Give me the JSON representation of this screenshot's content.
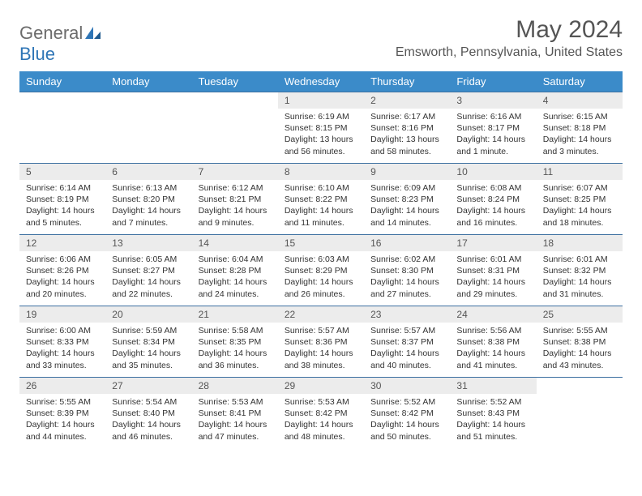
{
  "logo": {
    "text1": "General",
    "text2": "Blue"
  },
  "title": "May 2024",
  "location": "Emsworth, Pennsylvania, United States",
  "colors": {
    "header_bg": "#3b8bc9",
    "row_border": "#3b6fa0",
    "daynum_bg": "#ececec",
    "logo_blue": "#2e75b6"
  },
  "weekdays": [
    "Sunday",
    "Monday",
    "Tuesday",
    "Wednesday",
    "Thursday",
    "Friday",
    "Saturday"
  ],
  "weeks": [
    [
      {
        "n": "",
        "sr": "",
        "ss": "",
        "dl": ""
      },
      {
        "n": "",
        "sr": "",
        "ss": "",
        "dl": ""
      },
      {
        "n": "",
        "sr": "",
        "ss": "",
        "dl": ""
      },
      {
        "n": "1",
        "sr": "Sunrise: 6:19 AM",
        "ss": "Sunset: 8:15 PM",
        "dl": "Daylight: 13 hours and 56 minutes."
      },
      {
        "n": "2",
        "sr": "Sunrise: 6:17 AM",
        "ss": "Sunset: 8:16 PM",
        "dl": "Daylight: 13 hours and 58 minutes."
      },
      {
        "n": "3",
        "sr": "Sunrise: 6:16 AM",
        "ss": "Sunset: 8:17 PM",
        "dl": "Daylight: 14 hours and 1 minute."
      },
      {
        "n": "4",
        "sr": "Sunrise: 6:15 AM",
        "ss": "Sunset: 8:18 PM",
        "dl": "Daylight: 14 hours and 3 minutes."
      }
    ],
    [
      {
        "n": "5",
        "sr": "Sunrise: 6:14 AM",
        "ss": "Sunset: 8:19 PM",
        "dl": "Daylight: 14 hours and 5 minutes."
      },
      {
        "n": "6",
        "sr": "Sunrise: 6:13 AM",
        "ss": "Sunset: 8:20 PM",
        "dl": "Daylight: 14 hours and 7 minutes."
      },
      {
        "n": "7",
        "sr": "Sunrise: 6:12 AM",
        "ss": "Sunset: 8:21 PM",
        "dl": "Daylight: 14 hours and 9 minutes."
      },
      {
        "n": "8",
        "sr": "Sunrise: 6:10 AM",
        "ss": "Sunset: 8:22 PM",
        "dl": "Daylight: 14 hours and 11 minutes."
      },
      {
        "n": "9",
        "sr": "Sunrise: 6:09 AM",
        "ss": "Sunset: 8:23 PM",
        "dl": "Daylight: 14 hours and 14 minutes."
      },
      {
        "n": "10",
        "sr": "Sunrise: 6:08 AM",
        "ss": "Sunset: 8:24 PM",
        "dl": "Daylight: 14 hours and 16 minutes."
      },
      {
        "n": "11",
        "sr": "Sunrise: 6:07 AM",
        "ss": "Sunset: 8:25 PM",
        "dl": "Daylight: 14 hours and 18 minutes."
      }
    ],
    [
      {
        "n": "12",
        "sr": "Sunrise: 6:06 AM",
        "ss": "Sunset: 8:26 PM",
        "dl": "Daylight: 14 hours and 20 minutes."
      },
      {
        "n": "13",
        "sr": "Sunrise: 6:05 AM",
        "ss": "Sunset: 8:27 PM",
        "dl": "Daylight: 14 hours and 22 minutes."
      },
      {
        "n": "14",
        "sr": "Sunrise: 6:04 AM",
        "ss": "Sunset: 8:28 PM",
        "dl": "Daylight: 14 hours and 24 minutes."
      },
      {
        "n": "15",
        "sr": "Sunrise: 6:03 AM",
        "ss": "Sunset: 8:29 PM",
        "dl": "Daylight: 14 hours and 26 minutes."
      },
      {
        "n": "16",
        "sr": "Sunrise: 6:02 AM",
        "ss": "Sunset: 8:30 PM",
        "dl": "Daylight: 14 hours and 27 minutes."
      },
      {
        "n": "17",
        "sr": "Sunrise: 6:01 AM",
        "ss": "Sunset: 8:31 PM",
        "dl": "Daylight: 14 hours and 29 minutes."
      },
      {
        "n": "18",
        "sr": "Sunrise: 6:01 AM",
        "ss": "Sunset: 8:32 PM",
        "dl": "Daylight: 14 hours and 31 minutes."
      }
    ],
    [
      {
        "n": "19",
        "sr": "Sunrise: 6:00 AM",
        "ss": "Sunset: 8:33 PM",
        "dl": "Daylight: 14 hours and 33 minutes."
      },
      {
        "n": "20",
        "sr": "Sunrise: 5:59 AM",
        "ss": "Sunset: 8:34 PM",
        "dl": "Daylight: 14 hours and 35 minutes."
      },
      {
        "n": "21",
        "sr": "Sunrise: 5:58 AM",
        "ss": "Sunset: 8:35 PM",
        "dl": "Daylight: 14 hours and 36 minutes."
      },
      {
        "n": "22",
        "sr": "Sunrise: 5:57 AM",
        "ss": "Sunset: 8:36 PM",
        "dl": "Daylight: 14 hours and 38 minutes."
      },
      {
        "n": "23",
        "sr": "Sunrise: 5:57 AM",
        "ss": "Sunset: 8:37 PM",
        "dl": "Daylight: 14 hours and 40 minutes."
      },
      {
        "n": "24",
        "sr": "Sunrise: 5:56 AM",
        "ss": "Sunset: 8:38 PM",
        "dl": "Daylight: 14 hours and 41 minutes."
      },
      {
        "n": "25",
        "sr": "Sunrise: 5:55 AM",
        "ss": "Sunset: 8:38 PM",
        "dl": "Daylight: 14 hours and 43 minutes."
      }
    ],
    [
      {
        "n": "26",
        "sr": "Sunrise: 5:55 AM",
        "ss": "Sunset: 8:39 PM",
        "dl": "Daylight: 14 hours and 44 minutes."
      },
      {
        "n": "27",
        "sr": "Sunrise: 5:54 AM",
        "ss": "Sunset: 8:40 PM",
        "dl": "Daylight: 14 hours and 46 minutes."
      },
      {
        "n": "28",
        "sr": "Sunrise: 5:53 AM",
        "ss": "Sunset: 8:41 PM",
        "dl": "Daylight: 14 hours and 47 minutes."
      },
      {
        "n": "29",
        "sr": "Sunrise: 5:53 AM",
        "ss": "Sunset: 8:42 PM",
        "dl": "Daylight: 14 hours and 48 minutes."
      },
      {
        "n": "30",
        "sr": "Sunrise: 5:52 AM",
        "ss": "Sunset: 8:42 PM",
        "dl": "Daylight: 14 hours and 50 minutes."
      },
      {
        "n": "31",
        "sr": "Sunrise: 5:52 AM",
        "ss": "Sunset: 8:43 PM",
        "dl": "Daylight: 14 hours and 51 minutes."
      },
      {
        "n": "",
        "sr": "",
        "ss": "",
        "dl": ""
      }
    ]
  ]
}
